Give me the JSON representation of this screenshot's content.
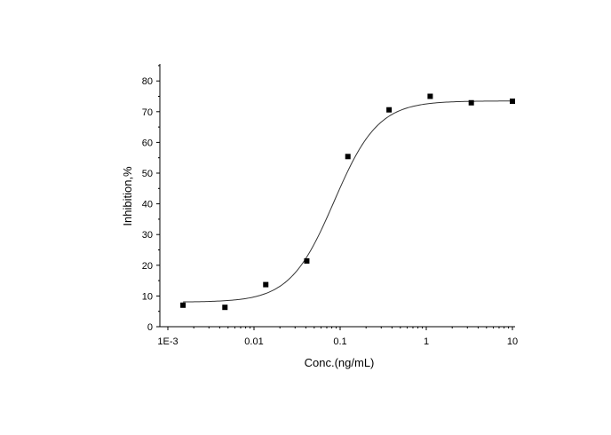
{
  "chart_data": {
    "type": "scatter",
    "title": "",
    "xlabel": "Conc.(ng/mL)",
    "ylabel": "Inhibition,%",
    "x_scale": "log",
    "xlim": [
      0.001,
      10
    ],
    "ylim": [
      0,
      85
    ],
    "x_ticks": [
      {
        "value": 0.001,
        "label": "1E-3"
      },
      {
        "value": 0.01,
        "label": "0.01"
      },
      {
        "value": 0.1,
        "label": "0.1"
      },
      {
        "value": 1,
        "label": "1"
      },
      {
        "value": 10,
        "label": "10"
      }
    ],
    "y_ticks": [
      {
        "value": 0,
        "label": "0"
      },
      {
        "value": 10,
        "label": "10"
      },
      {
        "value": 20,
        "label": "20"
      },
      {
        "value": 30,
        "label": "30"
      },
      {
        "value": 40,
        "label": "40"
      },
      {
        "value": 50,
        "label": "50"
      },
      {
        "value": 60,
        "label": "60"
      },
      {
        "value": 70,
        "label": "70"
      },
      {
        "value": 80,
        "label": "80"
      }
    ],
    "points": [
      {
        "x": 0.0015,
        "y": 7.0
      },
      {
        "x": 0.0046,
        "y": 6.3
      },
      {
        "x": 0.0137,
        "y": 13.7
      },
      {
        "x": 0.041,
        "y": 21.4
      },
      {
        "x": 0.123,
        "y": 55.4
      },
      {
        "x": 0.37,
        "y": 70.6
      },
      {
        "x": 1.11,
        "y": 75.0
      },
      {
        "x": 3.33,
        "y": 72.9
      },
      {
        "x": 10.0,
        "y": 73.4
      }
    ],
    "fit_curve": {
      "type": "four-parameter-logistic",
      "bottom": 8.0,
      "top": 73.5,
      "ec50": 0.085,
      "hill": 1.7
    },
    "grid": false,
    "legend": "none"
  }
}
